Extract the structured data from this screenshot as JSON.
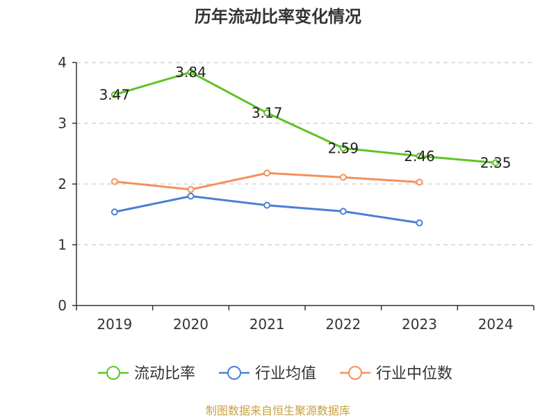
{
  "title": "历年流动比率变化情况",
  "source": "制图数据来自恒生聚源数据库",
  "colors": {
    "axis": "#333333",
    "grid": "#cccccc",
    "source_text": "#c8a040"
  },
  "chart_data": {
    "type": "line",
    "title": "历年流动比率变化情况",
    "xlabel": "",
    "ylabel": "",
    "categories": [
      "2019",
      "2020",
      "2021",
      "2022",
      "2023",
      "2024"
    ],
    "ylim": [
      0,
      4
    ],
    "yticks": [
      0,
      1,
      2,
      3,
      4
    ],
    "grid": "horizontal dashed",
    "legend_position": "bottom",
    "series": [
      {
        "name": "流动比率",
        "color": "#5cc425",
        "values": [
          3.47,
          3.84,
          3.17,
          2.59,
          2.46,
          2.35
        ],
        "labels": [
          "3.47",
          "3.84",
          "3.17",
          "2.59",
          "2.46",
          "2.35"
        ]
      },
      {
        "name": "行业均值",
        "color": "#4a7fd6",
        "values": [
          1.54,
          1.8,
          1.65,
          1.55,
          1.36,
          null
        ]
      },
      {
        "name": "行业中位数",
        "color": "#f4905b",
        "values": [
          2.04,
          1.91,
          2.18,
          2.11,
          2.03,
          null
        ]
      }
    ]
  }
}
